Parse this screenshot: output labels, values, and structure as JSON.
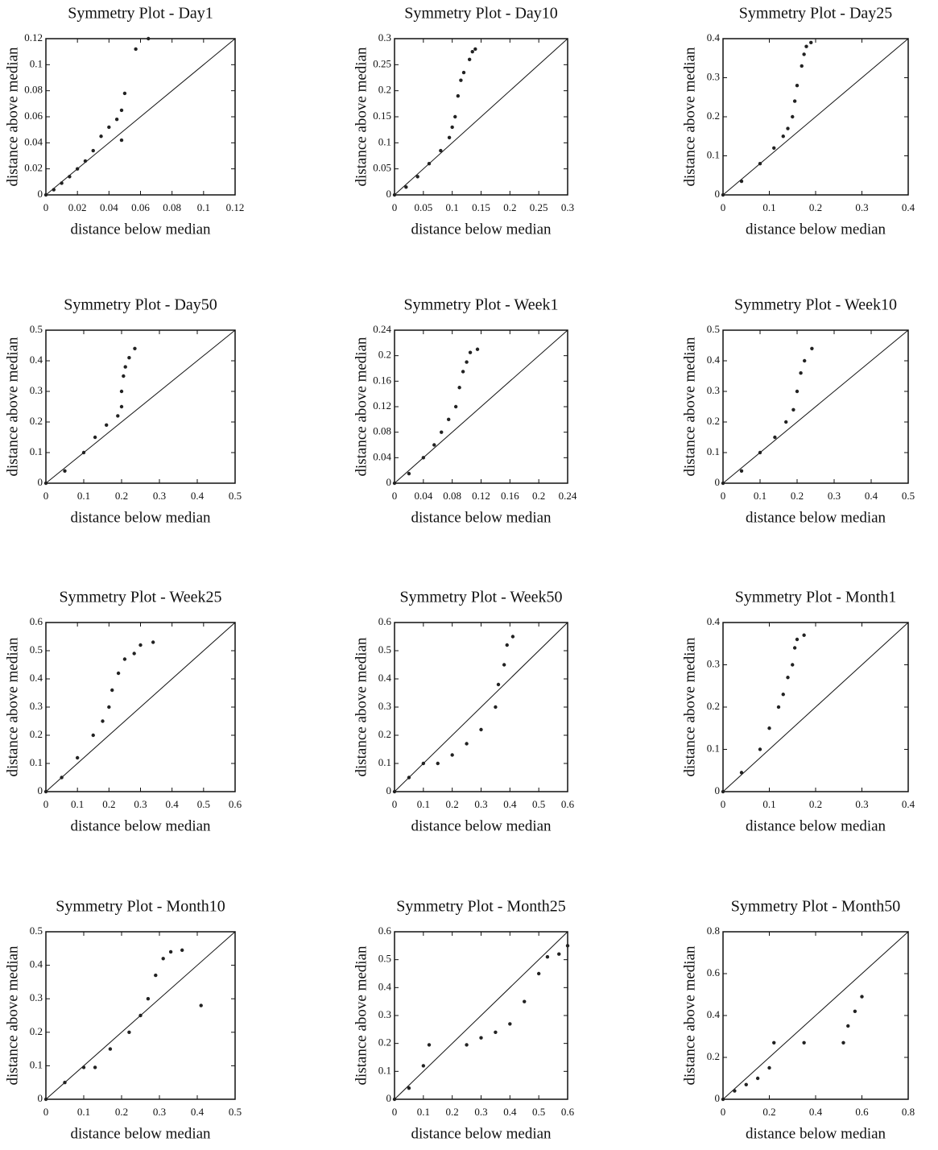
{
  "chart_data": [
    {
      "type": "scatter",
      "title": "Symmetry Plot - Day1",
      "x_label": "distance below median",
      "y_label": "distance above median",
      "color": "#222222",
      "xlim": [
        0,
        0.12
      ],
      "ylim": [
        0,
        0.12
      ],
      "xticks": [
        0,
        0.02,
        0.04,
        0.06,
        0.08,
        0.1,
        0.12
      ],
      "yticks": [
        0,
        0.02,
        0.04,
        0.06,
        0.08,
        0.1,
        0.12
      ],
      "x": [
        0,
        0.005,
        0.01,
        0.015,
        0.02,
        0.025,
        0.03,
        0.035,
        0.04,
        0.045,
        0.048,
        0.05,
        0.048,
        0.057,
        0.065
      ],
      "values": [
        0,
        0.004,
        0.009,
        0.014,
        0.02,
        0.026,
        0.034,
        0.045,
        0.052,
        0.058,
        0.065,
        0.078,
        0.042,
        0.112,
        0.12
      ]
    },
    {
      "type": "scatter",
      "title": "Symmetry Plot - Day10",
      "x_label": "distance below median",
      "y_label": "distance above median",
      "color": "#222222",
      "xlim": [
        0,
        0.3
      ],
      "ylim": [
        0,
        0.3
      ],
      "xticks": [
        0,
        0.05,
        0.1,
        0.15,
        0.2,
        0.25,
        0.3
      ],
      "yticks": [
        0,
        0.05,
        0.1,
        0.15,
        0.2,
        0.25,
        0.3
      ],
      "x": [
        0,
        0.02,
        0.04,
        0.06,
        0.08,
        0.095,
        0.1,
        0.105,
        0.11,
        0.115,
        0.12,
        0.13,
        0.135,
        0.14
      ],
      "values": [
        0,
        0.015,
        0.035,
        0.06,
        0.085,
        0.11,
        0.13,
        0.15,
        0.19,
        0.22,
        0.235,
        0.26,
        0.275,
        0.28
      ]
    },
    {
      "type": "scatter",
      "title": "Symmetry Plot - Day25",
      "x_label": "distance below median",
      "y_label": "distance above median",
      "color": "#222222",
      "xlim": [
        0,
        0.4
      ],
      "ylim": [
        0,
        0.4
      ],
      "xticks": [
        0,
        0.1,
        0.2,
        0.3,
        0.4
      ],
      "yticks": [
        0,
        0.1,
        0.2,
        0.3,
        0.4
      ],
      "x": [
        0,
        0.04,
        0.08,
        0.11,
        0.13,
        0.14,
        0.15,
        0.155,
        0.16,
        0.17,
        0.175,
        0.18,
        0.19
      ],
      "values": [
        0,
        0.035,
        0.08,
        0.12,
        0.15,
        0.17,
        0.2,
        0.24,
        0.28,
        0.33,
        0.36,
        0.38,
        0.39
      ]
    },
    {
      "type": "scatter",
      "title": "Symmetry Plot - Day50",
      "x_label": "distance below median",
      "y_label": "distance above median",
      "color": "#222222",
      "xlim": [
        0,
        0.5
      ],
      "ylim": [
        0,
        0.5
      ],
      "xticks": [
        0,
        0.1,
        0.2,
        0.3,
        0.4,
        0.5
      ],
      "yticks": [
        0,
        0.1,
        0.2,
        0.3,
        0.4,
        0.5
      ],
      "x": [
        0,
        0.05,
        0.1,
        0.13,
        0.16,
        0.19,
        0.2,
        0.2,
        0.205,
        0.21,
        0.22,
        0.235
      ],
      "values": [
        0,
        0.04,
        0.1,
        0.15,
        0.19,
        0.22,
        0.25,
        0.3,
        0.35,
        0.38,
        0.41,
        0.44
      ]
    },
    {
      "type": "scatter",
      "title": "Symmetry Plot - Week1",
      "x_label": "distance below median",
      "y_label": "distance above median",
      "color": "#222222",
      "xlim": [
        0,
        0.24
      ],
      "ylim": [
        0,
        0.24
      ],
      "xticks": [
        0,
        0.04,
        0.08,
        0.12,
        0.16,
        0.2,
        0.24
      ],
      "yticks": [
        0,
        0.04,
        0.08,
        0.12,
        0.16,
        0.2,
        0.24
      ],
      "x": [
        0,
        0.02,
        0.04,
        0.055,
        0.065,
        0.075,
        0.085,
        0.09,
        0.095,
        0.1,
        0.105,
        0.115
      ],
      "values": [
        0,
        0.015,
        0.04,
        0.06,
        0.08,
        0.1,
        0.12,
        0.15,
        0.175,
        0.19,
        0.205,
        0.21
      ]
    },
    {
      "type": "scatter",
      "title": "Symmetry Plot - Week10",
      "x_label": "distance below median",
      "y_label": "distance above median",
      "color": "#222222",
      "xlim": [
        0,
        0.5
      ],
      "ylim": [
        0,
        0.5
      ],
      "xticks": [
        0,
        0.1,
        0.2,
        0.3,
        0.4,
        0.5
      ],
      "yticks": [
        0,
        0.1,
        0.2,
        0.3,
        0.4,
        0.5
      ],
      "x": [
        0,
        0.05,
        0.1,
        0.14,
        0.17,
        0.19,
        0.2,
        0.21,
        0.22,
        0.24
      ],
      "values": [
        0,
        0.04,
        0.1,
        0.15,
        0.2,
        0.24,
        0.3,
        0.36,
        0.4,
        0.44
      ]
    },
    {
      "type": "scatter",
      "title": "Symmetry Plot - Week25",
      "x_label": "distance below median",
      "y_label": "distance above median",
      "color": "#222222",
      "xlim": [
        0,
        0.6
      ],
      "ylim": [
        0,
        0.6
      ],
      "xticks": [
        0,
        0.1,
        0.2,
        0.3,
        0.4,
        0.5,
        0.6
      ],
      "yticks": [
        0,
        0.1,
        0.2,
        0.3,
        0.4,
        0.5,
        0.6
      ],
      "x": [
        0,
        0.05,
        0.1,
        0.15,
        0.18,
        0.2,
        0.21,
        0.23,
        0.25,
        0.28,
        0.3,
        0.34
      ],
      "values": [
        0,
        0.05,
        0.12,
        0.2,
        0.25,
        0.3,
        0.36,
        0.42,
        0.47,
        0.49,
        0.52,
        0.53
      ]
    },
    {
      "type": "scatter",
      "title": "Symmetry Plot - Week50",
      "x_label": "distance below median",
      "y_label": "distance above median",
      "color": "#222222",
      "xlim": [
        0,
        0.6
      ],
      "ylim": [
        0,
        0.6
      ],
      "xticks": [
        0,
        0.1,
        0.2,
        0.3,
        0.4,
        0.5,
        0.6
      ],
      "yticks": [
        0,
        0.1,
        0.2,
        0.3,
        0.4,
        0.5,
        0.6
      ],
      "x": [
        0,
        0.05,
        0.1,
        0.15,
        0.2,
        0.25,
        0.3,
        0.35,
        0.36,
        0.38,
        0.39,
        0.41
      ],
      "values": [
        0,
        0.05,
        0.1,
        0.1,
        0.13,
        0.17,
        0.22,
        0.3,
        0.38,
        0.45,
        0.52,
        0.55
      ]
    },
    {
      "type": "scatter",
      "title": "Symmetry Plot - Month1",
      "x_label": "distance below median",
      "y_label": "distance above median",
      "color": "#222222",
      "xlim": [
        0,
        0.4
      ],
      "ylim": [
        0,
        0.4
      ],
      "xticks": [
        0,
        0.1,
        0.2,
        0.3,
        0.4
      ],
      "yticks": [
        0,
        0.1,
        0.2,
        0.3,
        0.4
      ],
      "x": [
        0,
        0.04,
        0.08,
        0.1,
        0.12,
        0.13,
        0.14,
        0.15,
        0.155,
        0.16,
        0.175
      ],
      "values": [
        0,
        0.045,
        0.1,
        0.15,
        0.2,
        0.23,
        0.27,
        0.3,
        0.34,
        0.36,
        0.37
      ]
    },
    {
      "type": "scatter",
      "title": "Symmetry Plot - Month10",
      "x_label": "distance below median",
      "y_label": "distance above median",
      "color": "#222222",
      "xlim": [
        0,
        0.5
      ],
      "ylim": [
        0,
        0.5
      ],
      "xticks": [
        0,
        0.1,
        0.2,
        0.3,
        0.4,
        0.5
      ],
      "yticks": [
        0,
        0.1,
        0.2,
        0.3,
        0.4,
        0.5
      ],
      "x": [
        0,
        0.05,
        0.1,
        0.13,
        0.17,
        0.22,
        0.25,
        0.27,
        0.29,
        0.31,
        0.33,
        0.36,
        0.41
      ],
      "values": [
        0,
        0.05,
        0.095,
        0.095,
        0.15,
        0.2,
        0.25,
        0.3,
        0.37,
        0.42,
        0.44,
        0.445,
        0.28
      ]
    },
    {
      "type": "scatter",
      "title": "Symmetry Plot - Month25",
      "x_label": "distance below median",
      "y_label": "distance above median",
      "color": "#222222",
      "xlim": [
        0,
        0.6
      ],
      "ylim": [
        0,
        0.6
      ],
      "xticks": [
        0,
        0.1,
        0.2,
        0.3,
        0.4,
        0.5,
        0.6
      ],
      "yticks": [
        0,
        0.1,
        0.2,
        0.3,
        0.4,
        0.5,
        0.6
      ],
      "x": [
        0,
        0.05,
        0.1,
        0.12,
        0.25,
        0.3,
        0.35,
        0.4,
        0.45,
        0.5,
        0.53,
        0.57,
        0.6
      ],
      "values": [
        0,
        0.04,
        0.12,
        0.195,
        0.195,
        0.22,
        0.24,
        0.27,
        0.35,
        0.45,
        0.51,
        0.52,
        0.55
      ]
    },
    {
      "type": "scatter",
      "title": "Symmetry Plot - Month50",
      "x_label": "distance below median",
      "y_label": "distance above median",
      "color": "#222222",
      "xlim": [
        0,
        0.8
      ],
      "ylim": [
        0,
        0.8
      ],
      "xticks": [
        0,
        0.2,
        0.4,
        0.6,
        0.8
      ],
      "yticks": [
        0,
        0.2,
        0.4,
        0.6,
        0.8
      ],
      "x": [
        0,
        0.05,
        0.1,
        0.15,
        0.2,
        0.22,
        0.35,
        0.52,
        0.54,
        0.57,
        0.6
      ],
      "values": [
        0,
        0.04,
        0.07,
        0.1,
        0.15,
        0.27,
        0.27,
        0.27,
        0.35,
        0.42,
        0.49
      ]
    }
  ]
}
